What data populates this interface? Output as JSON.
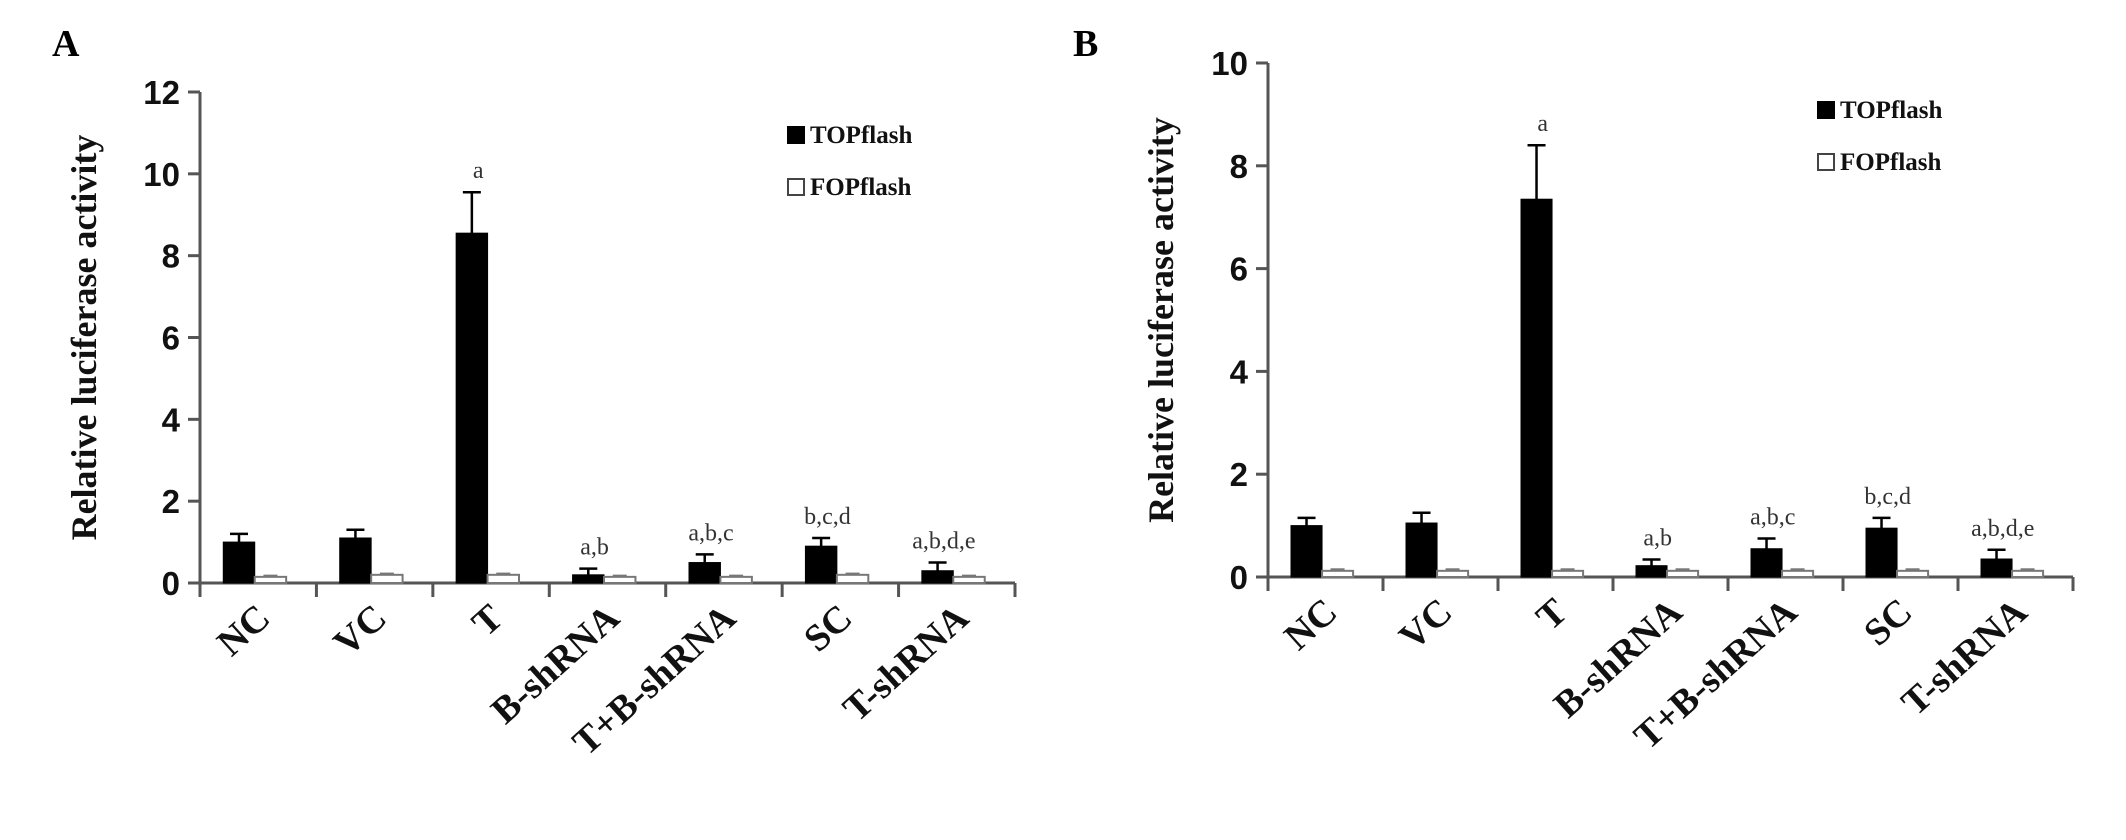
{
  "chart_data": [
    {
      "type": "bar",
      "panel_label": "A",
      "ylabel": "Relative luciferase activity",
      "ylim": [
        0,
        12
      ],
      "yticks": [
        0,
        2,
        4,
        6,
        8,
        10,
        12
      ],
      "categories": [
        "NC",
        "VC",
        "T",
        "B-shRNA",
        "T+B-shRNA",
        "SC",
        "T-shRNA"
      ],
      "series": [
        {
          "name": "TOPflash",
          "values": [
            1.0,
            1.1,
            8.55,
            0.2,
            0.5,
            0.9,
            0.3
          ],
          "errors": [
            0.2,
            0.2,
            1.0,
            0.15,
            0.2,
            0.2,
            0.2
          ],
          "color": "#000000"
        },
        {
          "name": "FOPflash",
          "values": [
            0.15,
            0.2,
            0.2,
            0.15,
            0.15,
            0.2,
            0.15
          ],
          "errors": [
            0.03,
            0.03,
            0.03,
            0.03,
            0.03,
            0.03,
            0.03
          ],
          "color": "#ffffff"
        }
      ],
      "annotations": [
        "",
        "",
        "a",
        "a,b",
        "a,b,c",
        "b,c,d",
        "a,b,d,e"
      ],
      "legend_position": "top-right"
    },
    {
      "type": "bar",
      "panel_label": "B",
      "ylabel": "Relative luciferase activity",
      "ylim": [
        0,
        10
      ],
      "yticks": [
        0,
        2,
        4,
        6,
        8,
        10
      ],
      "categories": [
        "NC",
        "VC",
        "T",
        "B-shRNA",
        "T+B-shRNA",
        "SC",
        "T-shRNA"
      ],
      "series": [
        {
          "name": "TOPflash",
          "values": [
            1.0,
            1.05,
            7.35,
            0.22,
            0.55,
            0.95,
            0.35
          ],
          "errors": [
            0.15,
            0.2,
            1.05,
            0.12,
            0.2,
            0.2,
            0.18
          ],
          "color": "#000000"
        },
        {
          "name": "FOPflash",
          "values": [
            0.12,
            0.12,
            0.12,
            0.12,
            0.12,
            0.12,
            0.12
          ],
          "errors": [
            0.03,
            0.03,
            0.03,
            0.03,
            0.03,
            0.03,
            0.03
          ],
          "color": "#ffffff"
        }
      ],
      "annotations": [
        "",
        "",
        "a",
        "a,b",
        "a,b,c",
        "b,c,d",
        "a,b,d,e"
      ],
      "legend_position": "top-right"
    }
  ]
}
